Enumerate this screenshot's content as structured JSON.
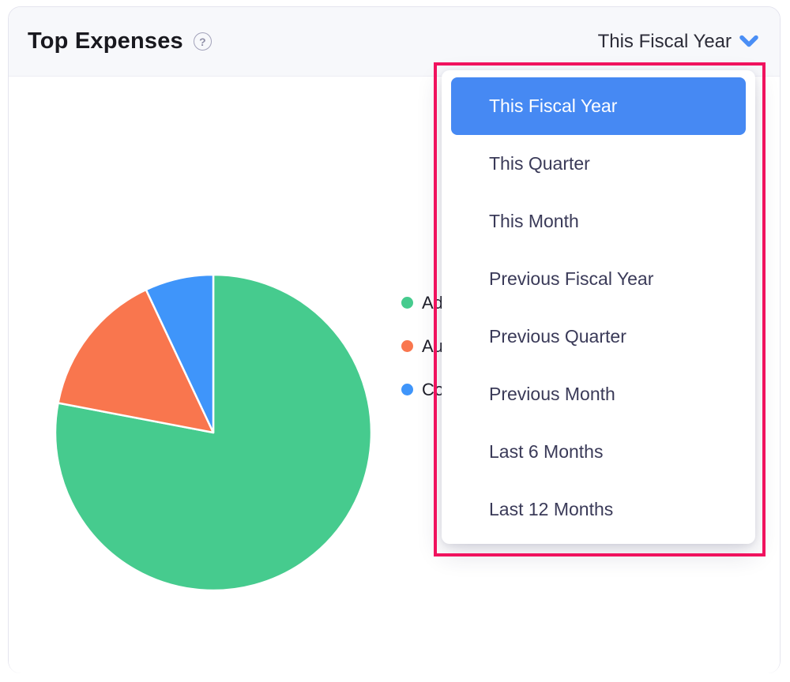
{
  "widget": {
    "title": "Top Expenses",
    "help_glyph": "?",
    "period_selector": {
      "value": "This Fiscal Year"
    }
  },
  "dropdown": {
    "selected_index": 0,
    "items": [
      "This Fiscal Year",
      "This Quarter",
      "This Month",
      "Previous Fiscal Year",
      "Previous Quarter",
      "Previous Month",
      "Last 6 Months",
      "Last 12 Months"
    ]
  },
  "chart_data": {
    "type": "pie",
    "title": "Top Expenses",
    "legend_position": "right",
    "start_angle": "12-oclock",
    "direction": "clockwise",
    "slices": [
      {
        "legend_label_visible": "Ad",
        "percent": 78,
        "color": "#46cb8e"
      },
      {
        "legend_label_visible": "Au",
        "percent": 15,
        "color": "#f9764e"
      },
      {
        "legend_label_visible": "Co",
        "percent": 7,
        "color": "#3f95fa"
      }
    ]
  },
  "colors": {
    "accent_blue": "#4689f3",
    "chevron_blue": "#4a8ef5",
    "annotation_pink": "#f0125e",
    "header_bg": "#f7f8fb",
    "widget_border": "#e4e4ee"
  }
}
